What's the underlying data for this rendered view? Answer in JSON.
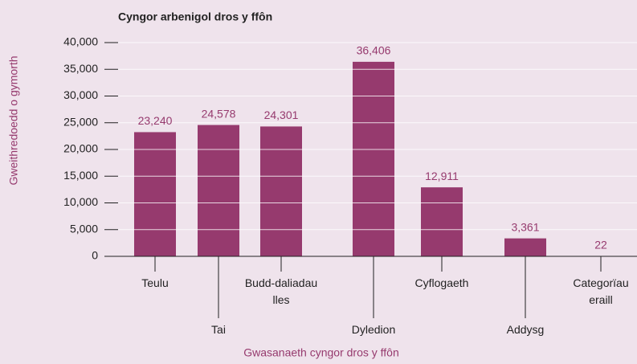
{
  "chart_data": {
    "type": "bar",
    "title": "Cyngor arbenigol dros y ffôn",
    "xlabel": "Gwasanaeth cyngor dros y ffôn",
    "ylabel": "Gweithredoedd o gymorth",
    "categories": [
      "Teulu",
      "Tai",
      "Budd-daliadau lles",
      "Dyledion",
      "Cyflogaeth",
      "Addysg",
      "Categorïau eraill"
    ],
    "values": [
      23240,
      24578,
      24301,
      36406,
      12911,
      3361,
      22
    ],
    "value_labels": [
      "23,240",
      "24,578",
      "24,301",
      "36,406",
      "12,911",
      "3,361",
      "22"
    ],
    "color": "#963a6e",
    "ylim": [
      0,
      40000
    ],
    "yticks": [
      0,
      {
        "value": 5000,
        "label": "5,000"
      },
      {
        "value": 10000,
        "label": "10,000"
      },
      {
        "value": 15000,
        "label": "15,000"
      },
      {
        "value": 20000,
        "label": "20,000"
      },
      {
        "value": 25000,
        "label": "25,000"
      },
      {
        "value": 30000,
        "label": "30,000"
      },
      {
        "value": 35000,
        "label": "35,000"
      },
      {
        "value": 40000,
        "label": "40,000"
      }
    ],
    "grid": true
  }
}
